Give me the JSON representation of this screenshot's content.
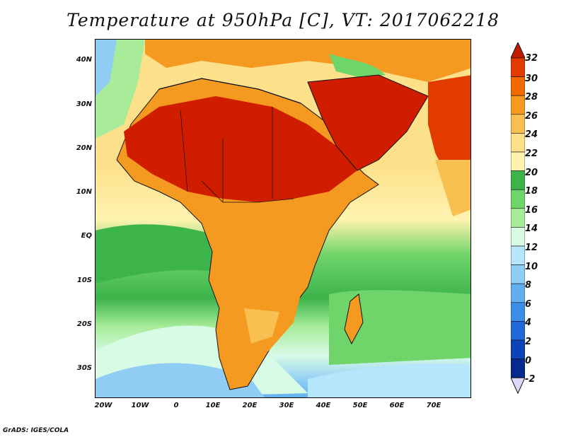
{
  "title": "Temperature at 950hPa [C], VT: 2017062218",
  "credit": "GrADS: IGES/COLA",
  "lat_labels": [
    "40N",
    "30N",
    "20N",
    "10N",
    "EQ",
    "10S",
    "20S",
    "30S"
  ],
  "lon_labels": [
    "20W",
    "10W",
    "0",
    "10E",
    "20E",
    "30E",
    "40E",
    "50E",
    "60E",
    "70E"
  ],
  "colorbar": {
    "labels": [
      "32",
      "30",
      "28",
      "26",
      "24",
      "22",
      "20",
      "18",
      "16",
      "14",
      "12",
      "10",
      "8",
      "6",
      "4",
      "2",
      "0",
      "-2"
    ],
    "colors": [
      "#c81a00",
      "#e33a00",
      "#f06a00",
      "#f59a20",
      "#f8c050",
      "#fde08a",
      "#fff3b0",
      "#3cb44a",
      "#6fd46a",
      "#a8ec9a",
      "#d8fbe6",
      "#b6e6fb",
      "#8fcdf5",
      "#62aef0",
      "#3a8ee6",
      "#2068d6",
      "#0c44b8",
      "#062a8c",
      "#061870"
    ],
    "top_arrow_color": "#c41a00",
    "bottom_arrow_color": "#dcd8f6"
  },
  "map_colors": {
    "ocean_cold": "#9fd0f6",
    "ocean_cool": "#c8f4e0",
    "ocean_mid": "#8fe08c",
    "ocean_warm": "#fde08a",
    "land_warm": "#f59a20",
    "land_hot": "#e33a00",
    "land_hottest": "#d01d00",
    "coastline": "#111111"
  }
}
